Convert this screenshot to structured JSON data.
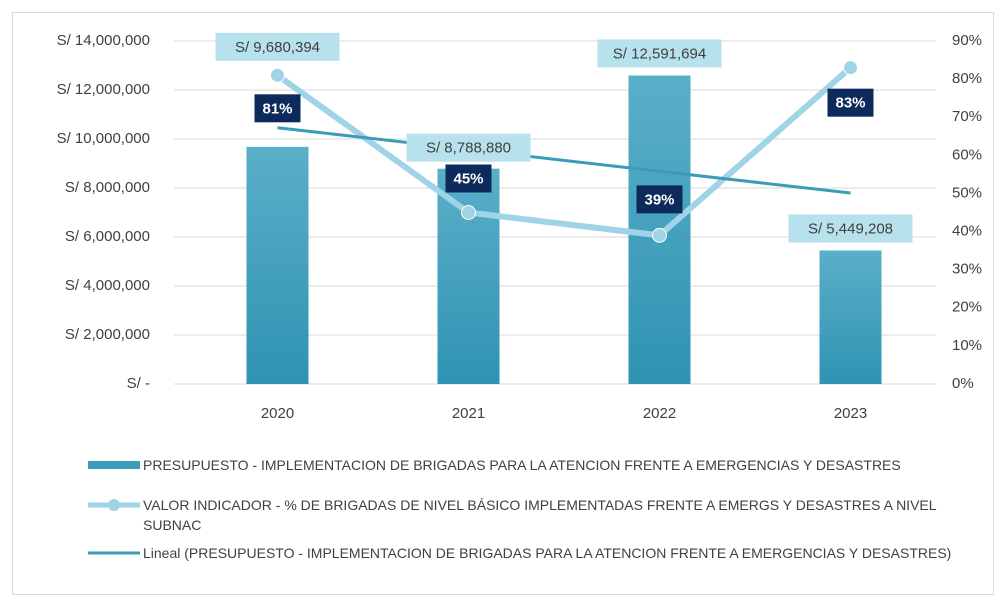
{
  "chart_data": {
    "type": "bar",
    "categories": [
      "2020",
      "2021",
      "2022",
      "2023"
    ],
    "series": [
      {
        "name": "PRESUPUESTO - IMPLEMENTACION DE BRIGADAS PARA LA ATENCION FRENTE A EMERGENCIAS Y DESASTRES",
        "type": "bar",
        "color": "#3a9dbb",
        "values": [
          9680394,
          8788880,
          12591694,
          5449208
        ],
        "value_labels": [
          "S/ 9,680,394",
          "S/ 8,788,880",
          "S/ 12,591,694",
          "S/ 5,449,208"
        ]
      },
      {
        "name": "VALOR INDICADOR - % DE BRIGADAS DE NIVEL BÁSICO IMPLEMENTADAS FRENTE A EMERGS Y DESASTRES A NIVEL SUBNAC",
        "type": "line",
        "axis": "y2",
        "color": "#9fd3e6",
        "values": [
          81,
          45,
          39,
          83
        ],
        "value_labels": [
          "81%",
          "45%",
          "39%",
          "83%"
        ]
      },
      {
        "name": "Lineal (PRESUPUESTO - IMPLEMENTACION DE BRIGADAS PARA LA ATENCION FRENTE A EMERGENCIAS Y DESASTRES)",
        "type": "trend",
        "color": "#3b9cb9",
        "values": [
          10461155,
          9572081,
          8683007,
          7793933
        ]
      }
    ],
    "ylim": [
      0,
      14000000
    ],
    "yticks": [
      {
        "value": 0,
        "label": "S/ -"
      },
      {
        "value": 2000000,
        "label": "S/ 2,000,000"
      },
      {
        "value": 4000000,
        "label": "S/ 4,000,000"
      },
      {
        "value": 6000000,
        "label": "S/ 6,000,000"
      },
      {
        "value": 8000000,
        "label": "S/ 8,000,000"
      },
      {
        "value": 10000000,
        "label": "S/ 10,000,000"
      },
      {
        "value": 12000000,
        "label": "S/ 12,000,000"
      },
      {
        "value": 14000000,
        "label": "S/ 14,000,000"
      }
    ],
    "y2lim": [
      0,
      90
    ],
    "y2ticks": [
      {
        "value": 0,
        "label": "0%"
      },
      {
        "value": 10,
        "label": "10%"
      },
      {
        "value": 20,
        "label": "20%"
      },
      {
        "value": 30,
        "label": "30%"
      },
      {
        "value": 40,
        "label": "40%"
      },
      {
        "value": 50,
        "label": "50%"
      },
      {
        "value": 60,
        "label": "60%"
      },
      {
        "value": 70,
        "label": "70%"
      },
      {
        "value": 80,
        "label": "80%"
      },
      {
        "value": 90,
        "label": "90%"
      }
    ],
    "grid": true,
    "legend": "bottom"
  }
}
